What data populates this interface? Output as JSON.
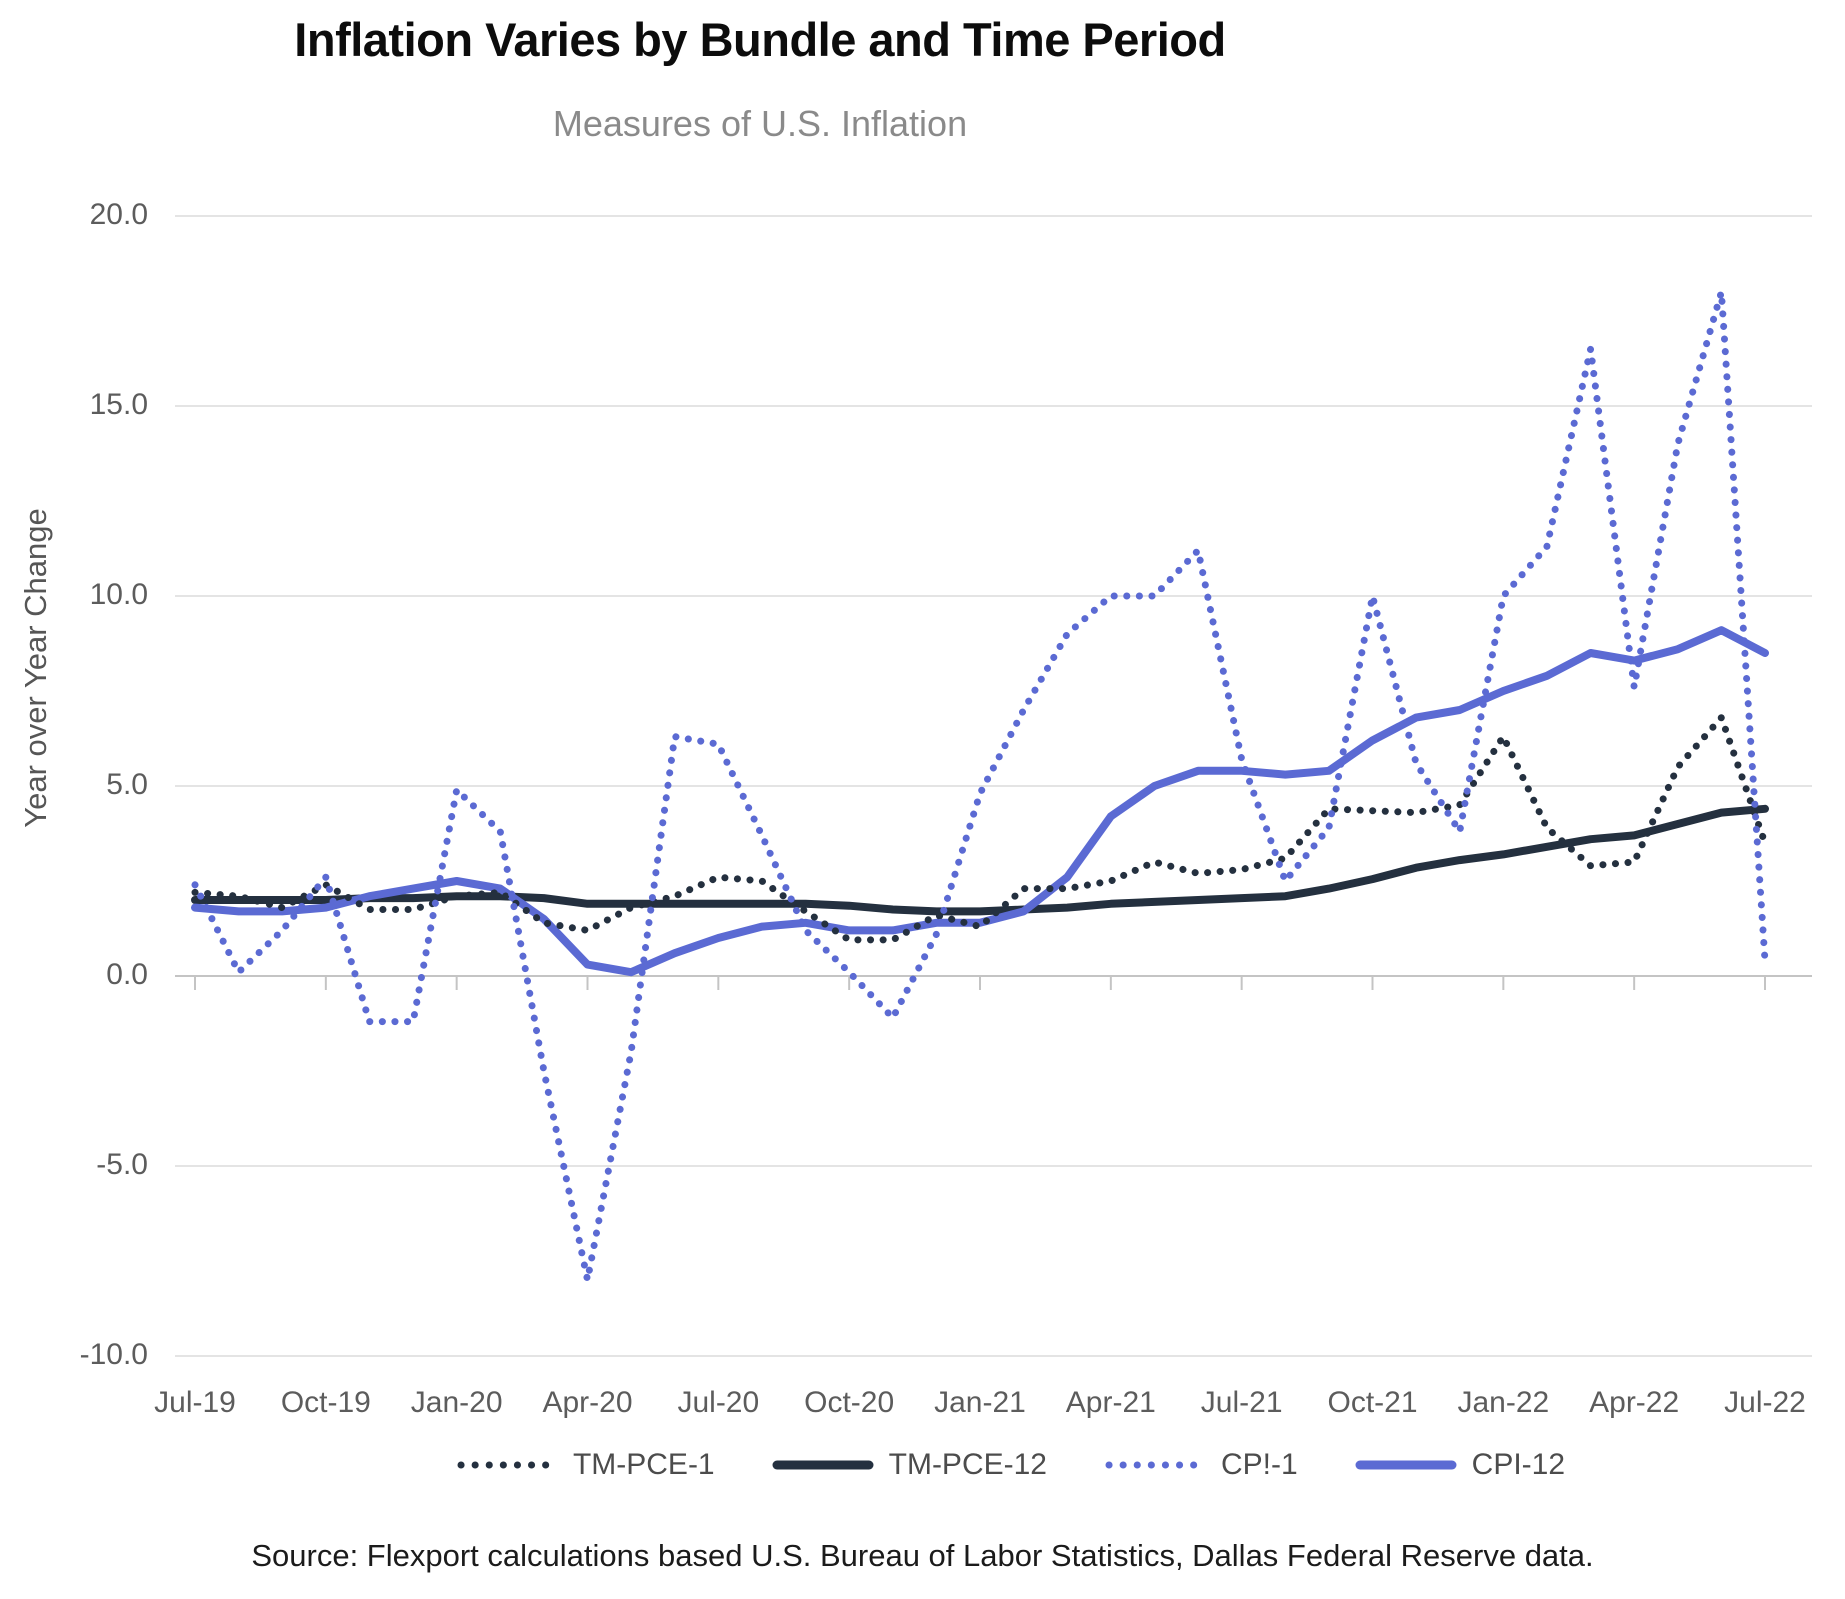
{
  "page": {
    "title": "Inflation Varies by Bundle and Time Period",
    "subtitle": "Measures of U.S. Inflation",
    "source": "Source: Flexport calculations based U.S. Bureau of Labor Statistics, Dallas Federal Reserve data."
  },
  "colors": {
    "dark_navy": "#24303f",
    "blue": "#5b6ad3",
    "gridline": "#e4e4e4",
    "zero_axis": "#c4c4c4",
    "tick_text": "#5c5c5c",
    "subtitle_text": "#8a8a8a"
  },
  "chart_data": {
    "type": "line",
    "title": "Inflation Varies by Bundle and Time Period",
    "subtitle": "Measures of U.S. Inflation",
    "xlabel": "",
    "ylabel": "Year over Year Change",
    "ylim": [
      -10,
      20
    ],
    "grid": "horizontal",
    "legend_position": "bottom",
    "y_ticks": [
      20,
      15,
      10,
      5,
      0,
      -5,
      -10
    ],
    "y_tick_labels": [
      "20.0",
      "15.0",
      "10.0",
      "5.0",
      "0.0",
      "-5.0",
      "-10.0"
    ],
    "x_tick_labels": [
      "Jul-19",
      "Oct-19",
      "Jan-20",
      "Apr-20",
      "Jul-20",
      "Oct-20",
      "Jan-21",
      "Apr-21",
      "Jul-21",
      "Oct-21",
      "Jan-22",
      "Apr-22",
      "Jul-22"
    ],
    "x_months": [
      "Jul-19",
      "Aug-19",
      "Sep-19",
      "Oct-19",
      "Nov-19",
      "Dec-19",
      "Jan-20",
      "Feb-20",
      "Mar-20",
      "Apr-20",
      "May-20",
      "Jun-20",
      "Jul-20",
      "Aug-20",
      "Sep-20",
      "Oct-20",
      "Nov-20",
      "Dec-20",
      "Jan-21",
      "Feb-21",
      "Mar-21",
      "Apr-21",
      "May-21",
      "Jun-21",
      "Jul-21",
      "Aug-21",
      "Sep-21",
      "Oct-21",
      "Nov-21",
      "Dec-21",
      "Jan-22",
      "Feb-22",
      "Mar-22",
      "Apr-22",
      "May-22",
      "Jun-22",
      "Jul-22"
    ],
    "series": [
      {
        "name": "TM-PCE-1",
        "style": "dotted",
        "color": "#24303f",
        "values": [
          2.2,
          2.1,
          1.8,
          2.4,
          1.75,
          1.75,
          2.1,
          2.2,
          1.4,
          1.2,
          1.8,
          2.1,
          2.6,
          2.5,
          1.7,
          0.95,
          0.95,
          1.6,
          1.3,
          2.3,
          2.3,
          2.5,
          3.0,
          2.7,
          2.8,
          3.1,
          4.4,
          4.35,
          4.3,
          4.5,
          6.3,
          3.9,
          2.9,
          3.0,
          5.5,
          6.8,
          3.5
        ]
      },
      {
        "name": "TM-PCE-12",
        "style": "solid",
        "color": "#24303f",
        "values": [
          2.0,
          2.0,
          2.0,
          2.0,
          2.05,
          2.05,
          2.1,
          2.1,
          2.05,
          1.9,
          1.9,
          1.9,
          1.9,
          1.9,
          1.9,
          1.85,
          1.75,
          1.7,
          1.7,
          1.75,
          1.8,
          1.9,
          1.95,
          2.0,
          2.05,
          2.1,
          2.3,
          2.55,
          2.85,
          3.05,
          3.2,
          3.4,
          3.6,
          3.7,
          4.0,
          4.3,
          4.4
        ]
      },
      {
        "name": "CP!-1",
        "style": "dotted",
        "color": "#5b6ad3",
        "values": [
          2.4,
          0.1,
          1.2,
          2.6,
          -1.2,
          -1.2,
          4.9,
          3.8,
          -2.5,
          -8.0,
          -2.0,
          6.3,
          6.1,
          3.7,
          1.2,
          0.1,
          -1.1,
          1.1,
          4.8,
          7.0,
          9.0,
          10.0,
          10.0,
          11.2,
          5.7,
          2.5,
          3.9,
          10.0,
          5.6,
          3.8,
          10.0,
          11.3,
          16.5,
          7.6,
          14.0,
          18.0,
          0.4
        ]
      },
      {
        "name": "CPI-12",
        "style": "solid",
        "color": "#5b6ad3",
        "values": [
          1.8,
          1.7,
          1.7,
          1.8,
          2.1,
          2.3,
          2.5,
          2.3,
          1.5,
          0.3,
          0.1,
          0.6,
          1.0,
          1.3,
          1.4,
          1.2,
          1.2,
          1.4,
          1.4,
          1.7,
          2.6,
          4.2,
          5.0,
          5.4,
          5.4,
          5.3,
          5.4,
          6.2,
          6.8,
          7.0,
          7.5,
          7.9,
          8.5,
          8.3,
          8.6,
          9.1,
          8.5
        ]
      }
    ]
  }
}
